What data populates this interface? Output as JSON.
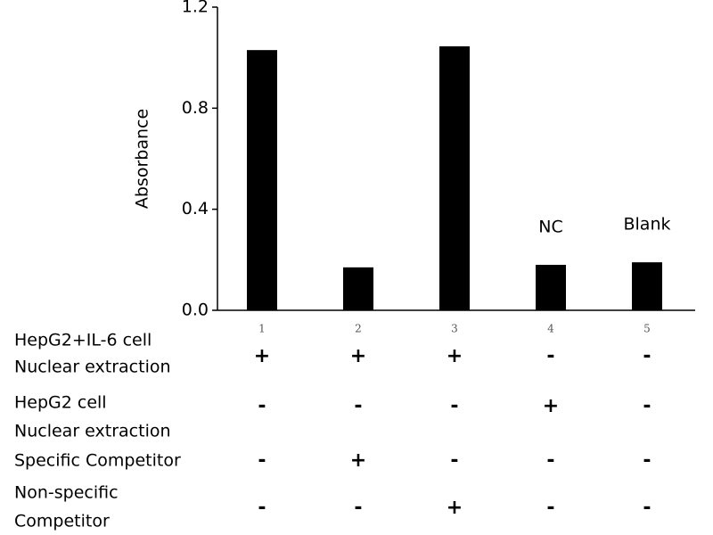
{
  "chart_data": {
    "type": "bar",
    "ylabel": "Absorbance",
    "categories": [
      "1",
      "2",
      "3",
      "4",
      "5"
    ],
    "values": [
      1.03,
      0.17,
      1.045,
      0.18,
      0.19
    ],
    "color": "#000000",
    "ylim": [
      0,
      1.2
    ],
    "yticks": [
      {
        "value": 0,
        "label": "0.0"
      },
      0.4,
      0.8,
      1.2
    ],
    "annotations": [
      {
        "text": "NC",
        "x": "4"
      },
      {
        "text": "Blank",
        "x": "5"
      }
    ]
  },
  "table": {
    "rows": [
      {
        "label": [
          "HepG2+IL-6 cell",
          "Nuclear extraction"
        ],
        "cells": [
          "+",
          "+",
          "+",
          "-",
          "-"
        ]
      },
      {
        "label": [
          "HepG2 cell",
          "Nuclear extraction"
        ],
        "cells": [
          "-",
          "-",
          "-",
          "+",
          "-"
        ]
      },
      {
        "label": [
          "Specific Competitor"
        ],
        "cells": [
          "-",
          "+",
          "-",
          "-",
          "-"
        ]
      },
      {
        "label": [
          "Non-specific",
          "Competitor"
        ],
        "cells": [
          "-",
          "-",
          "+",
          "-",
          "-"
        ]
      }
    ]
  }
}
